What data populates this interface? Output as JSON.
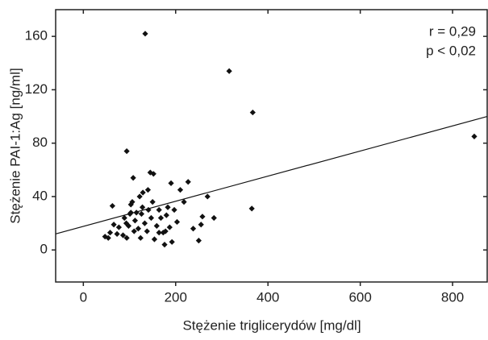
{
  "chart_data": {
    "type": "scatter",
    "x_label": "Stężenie triglicerydów [mg/dl]",
    "y_label": "Stężenie PAI-1:Ag [ng/ml]",
    "annotations": [
      "r = 0,29",
      "p < 0,02"
    ],
    "color": "#111111",
    "x": [
      134,
      316,
      367,
      847,
      94,
      145,
      152,
      269,
      227,
      190,
      210,
      108,
      365,
      258,
      255,
      250,
      238,
      283,
      63,
      47,
      58,
      66,
      77,
      86,
      89,
      93,
      98,
      101,
      103,
      106,
      112,
      115,
      119,
      124,
      128,
      133,
      138,
      141,
      147,
      150,
      154,
      159,
      164,
      168,
      173,
      176,
      180,
      183,
      187,
      192,
      197,
      203,
      218,
      140,
      129,
      122,
      103,
      73,
      54,
      94,
      110,
      126,
      164,
      178
    ],
    "values": [
      162,
      134,
      103,
      85,
      74,
      58,
      57,
      40,
      51,
      50,
      45,
      54,
      31,
      25,
      19,
      7,
      16,
      24,
      33,
      10,
      13,
      19,
      17,
      11,
      24,
      20,
      18,
      27,
      34,
      36,
      22,
      28,
      16,
      9,
      32,
      20,
      14,
      30,
      24,
      36,
      8,
      18,
      30,
      24,
      13,
      4,
      26,
      32,
      17,
      6,
      30,
      21,
      36,
      45,
      43,
      40,
      28,
      12,
      9,
      9,
      14,
      27,
      13,
      14
    ],
    "trend_line": {
      "x": [
        -60,
        875
      ],
      "y": [
        12,
        100
      ]
    },
    "xlim": [
      -60,
      875
    ],
    "ylim": [
      -24,
      180
    ],
    "xticks": [
      0,
      200,
      400,
      600,
      800
    ],
    "yticks": [
      0,
      40,
      80,
      120,
      160
    ]
  }
}
